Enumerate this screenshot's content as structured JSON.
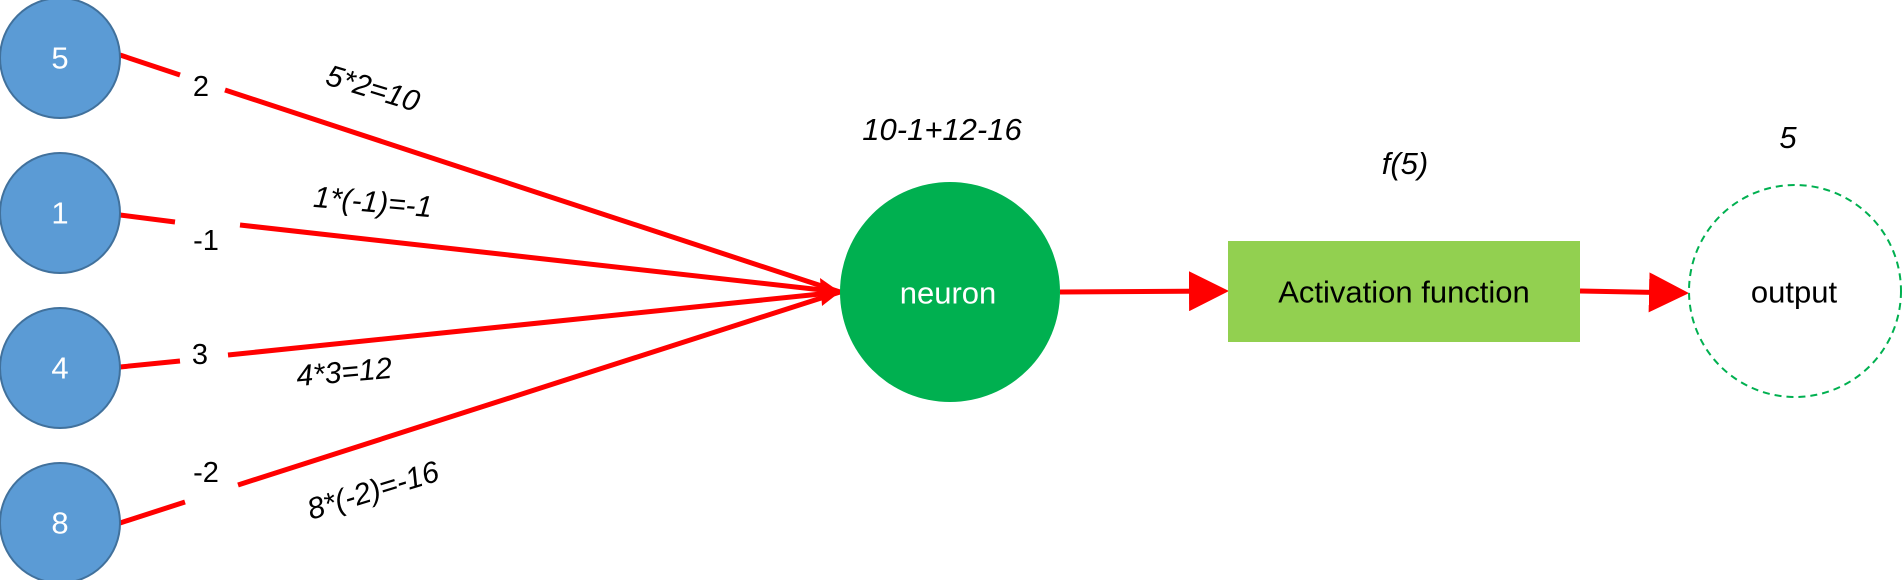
{
  "inputs": [
    {
      "value": "5",
      "weight": "2",
      "product": "5*2=10"
    },
    {
      "value": "1",
      "weight": "-1",
      "product": "1*(-1)=-1"
    },
    {
      "value": "4",
      "weight": "3",
      "product": "4*3=12"
    },
    {
      "value": "8",
      "weight": "-2",
      "product": "8*(-2)=-16"
    }
  ],
  "neuron": {
    "label": "neuron",
    "sum": "10-1+12-16"
  },
  "activation": {
    "label": "Activation function",
    "call": "f(5)"
  },
  "output": {
    "label": "output",
    "value": "5"
  },
  "colors": {
    "input_fill": "#5b9bd5",
    "input_stroke": "#41719c",
    "connection": "#ff0000",
    "neuron_fill": "#00b050",
    "activation_fill": "#92d050",
    "output_stroke": "#00b050"
  }
}
